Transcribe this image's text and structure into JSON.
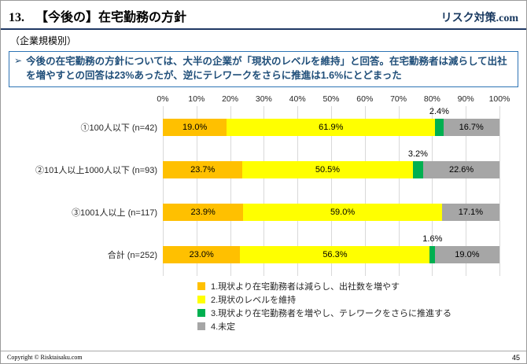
{
  "slide": {
    "title_prefix": "13.",
    "title": "【今後の】在宅勤務の方針",
    "brand": "リスク対策.com",
    "subtitle": "（企業規模別）",
    "bullet_marker": "➢",
    "bullet_text": "今後の在宅勤務の方針については、大半の企業が「現状のレベルを維持」と回答。在宅勤務者は減らして出社を増やすとの回答は23%あったが、逆にテレワークをさらに推進は1.6%にとどまった",
    "footer_left": "Copyright © Risktaisaku.com",
    "page_number": "45"
  },
  "chart_data": {
    "type": "bar",
    "orientation": "horizontal",
    "stacked": true,
    "grid": true,
    "legend_position": "bottom",
    "categories": [
      "①100人以下 (n=42)",
      "②101人以上1000人以下 (n=93)",
      "③1001人以上 (n=117)",
      "合計 (n=252)"
    ],
    "series": [
      {
        "name": "1.現状より在宅勤務者は減らし、出社数を増やす",
        "color": "#FFC000",
        "values": [
          19.0,
          23.7,
          23.9,
          23.0
        ]
      },
      {
        "name": "2.現状のレベルを維持",
        "color": "#FFFF00",
        "values": [
          61.9,
          50.5,
          59.0,
          56.3
        ]
      },
      {
        "name": "3.現状より在宅勤務者を増やし、テレワークをさらに推進する",
        "color": "#00B050",
        "values": [
          2.4,
          3.2,
          0.0,
          1.6
        ]
      },
      {
        "name": "4.未定",
        "color": "#A6A6A6",
        "values": [
          16.7,
          22.6,
          17.1,
          19.0
        ]
      }
    ],
    "x_axis": {
      "min": 0,
      "max": 100,
      "tick_step": 10,
      "tick_labels": [
        "0%",
        "10%",
        "20%",
        "30%",
        "40%",
        "50%",
        "60%",
        "70%",
        "80%",
        "90%",
        "100%"
      ]
    }
  }
}
